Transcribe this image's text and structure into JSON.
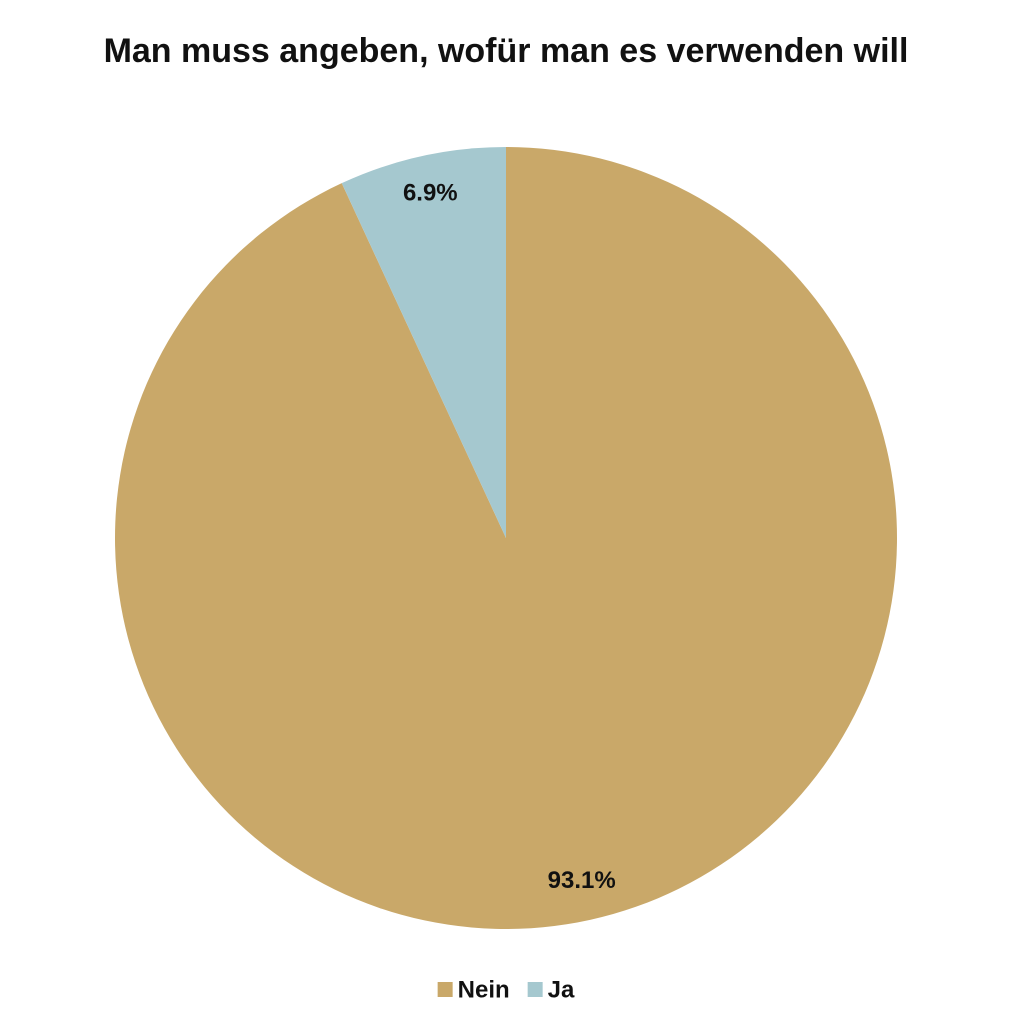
{
  "chart_data": {
    "type": "pie",
    "title": "Man muss angeben, wofür man es verwenden will",
    "categories": [
      "Nein",
      "Ja"
    ],
    "values": [
      93.1,
      6.9
    ],
    "value_labels": [
      "93.1%",
      "6.9%"
    ],
    "colors": [
      "#c9a869",
      "#a5c8cf"
    ],
    "legend": "bottom"
  }
}
